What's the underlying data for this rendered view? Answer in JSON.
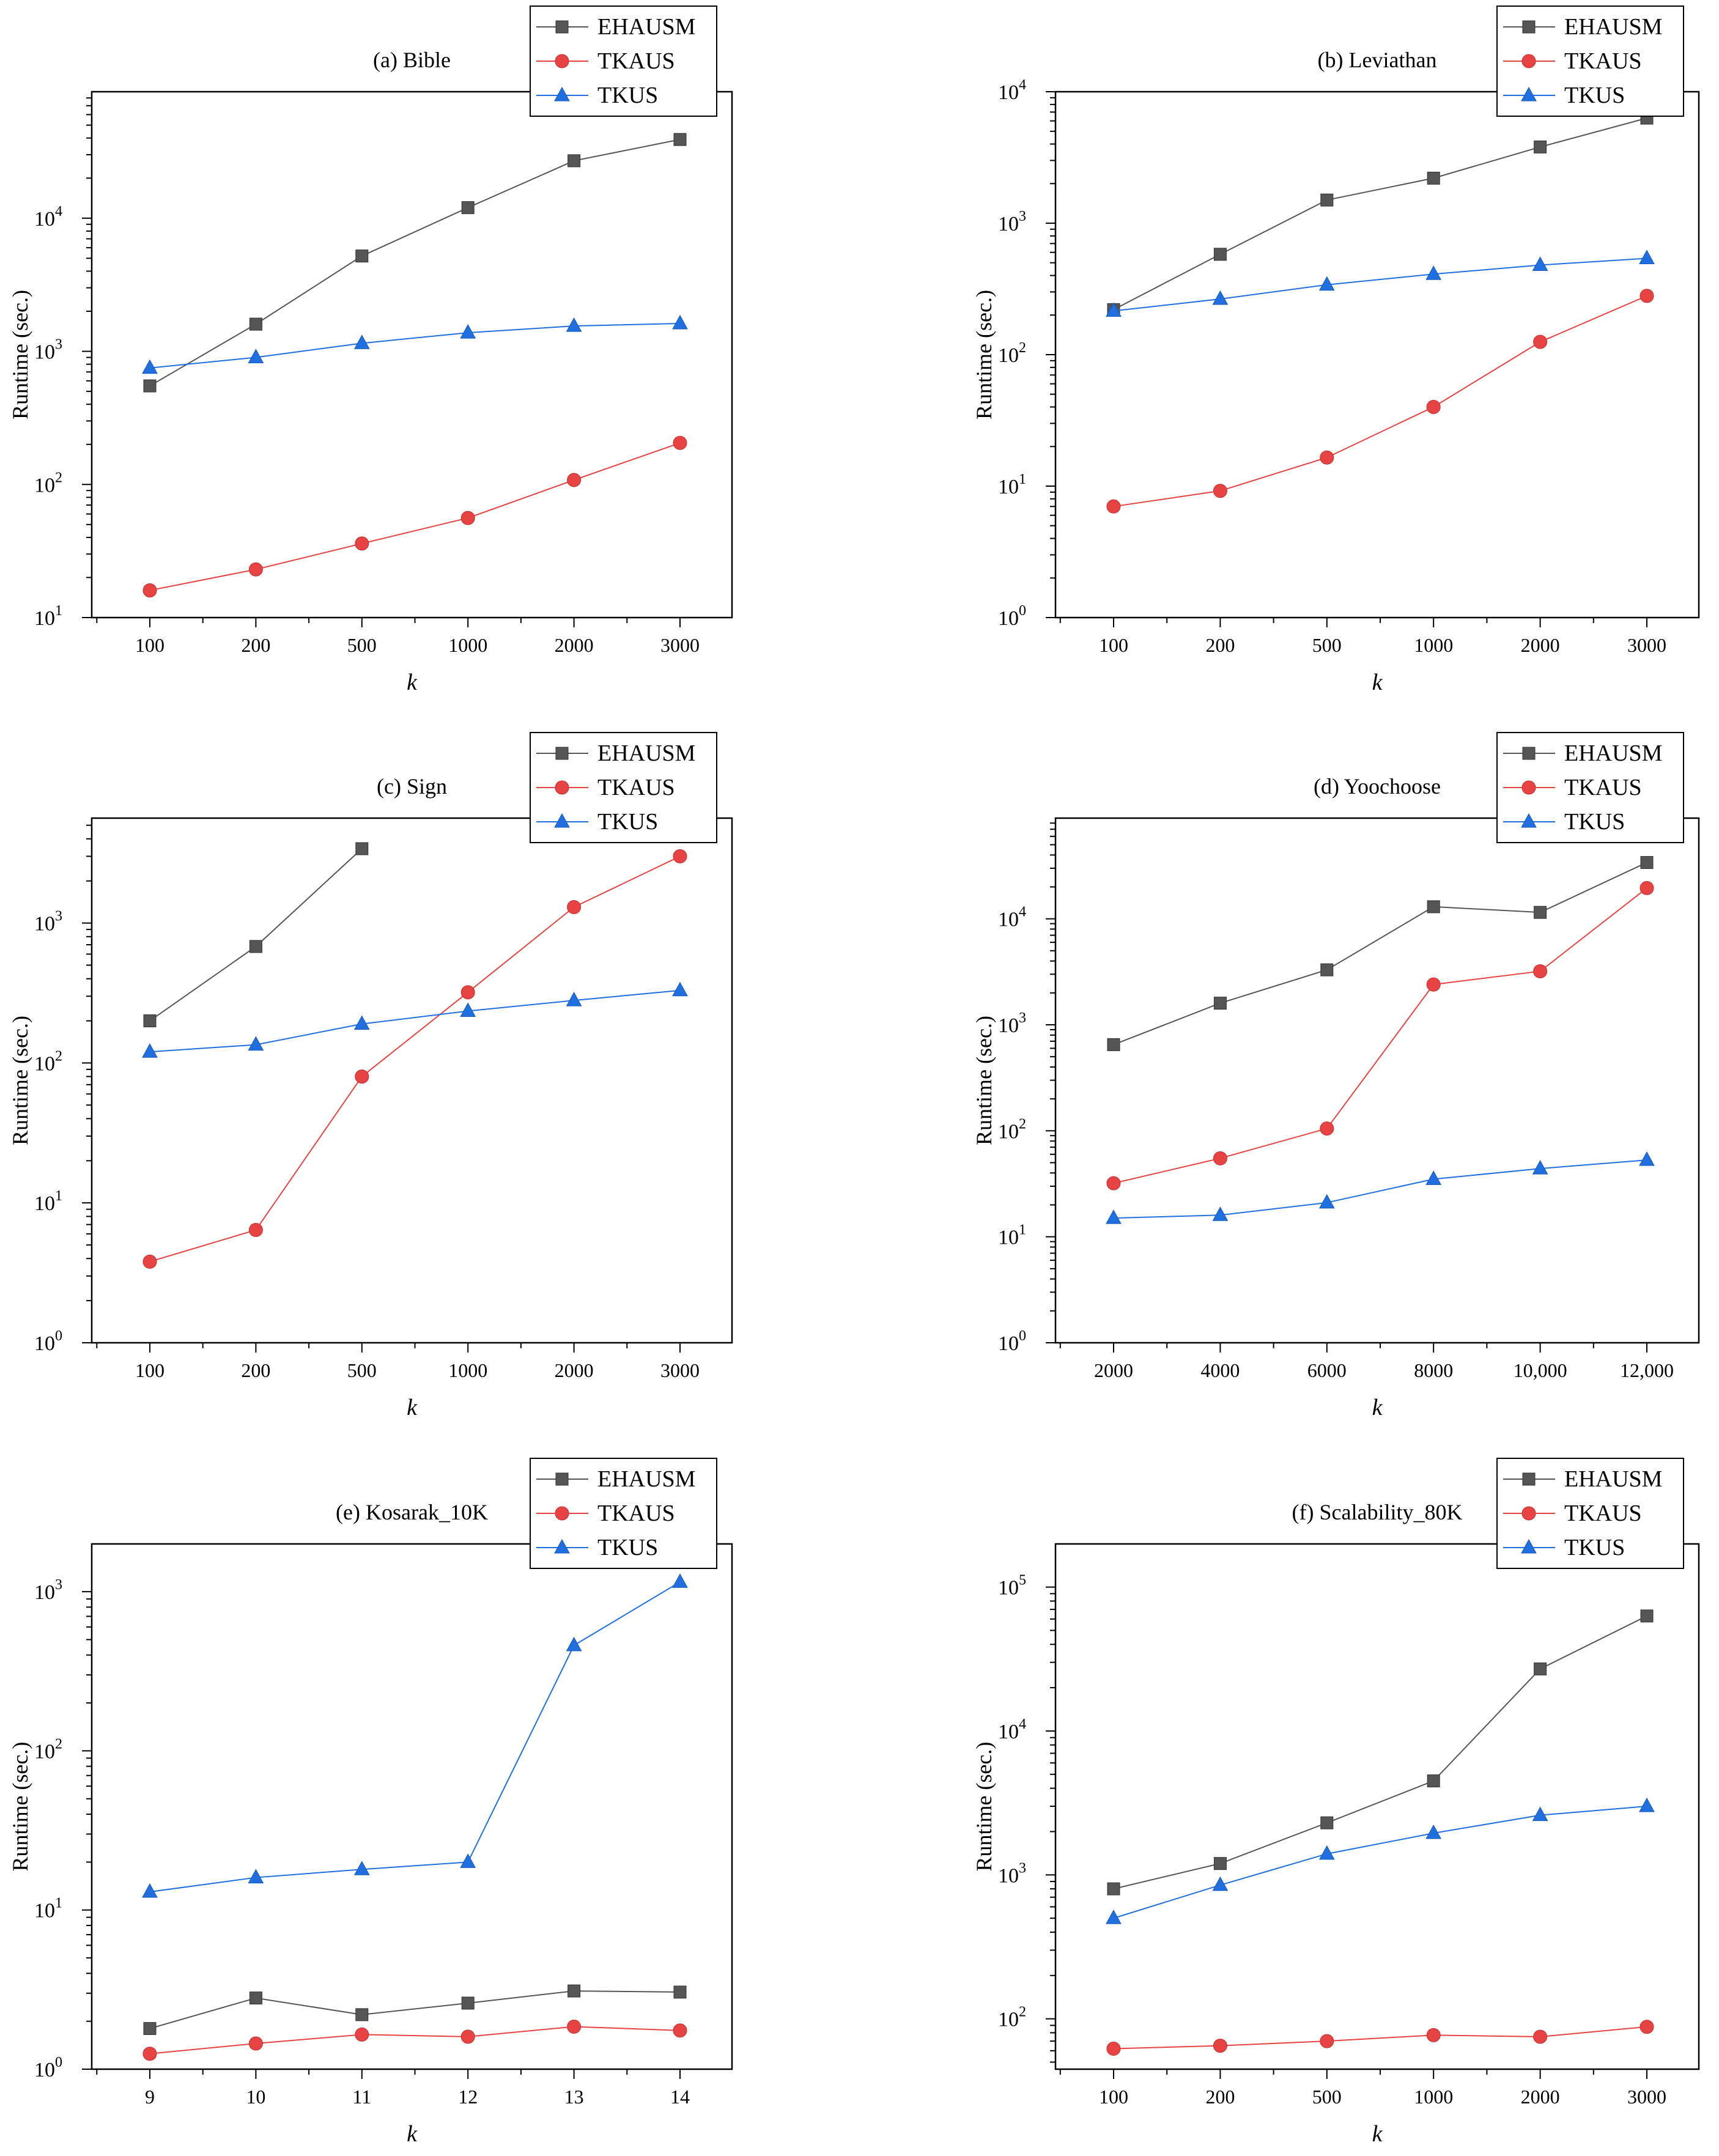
{
  "legend": {
    "entries": [
      {
        "name": "EHAUSM",
        "color": "#555555",
        "marker": "square"
      },
      {
        "name": "TKAUS",
        "color": "#e84343",
        "marker": "circle"
      },
      {
        "name": "TKUS",
        "color": "#1f6fe0",
        "marker": "triangle"
      }
    ],
    "placement": "top-right"
  },
  "chart_data": [
    {
      "type": "line",
      "title": "(a) Bible",
      "xlabel": "k",
      "ylabel": "Runtime (sec.)",
      "yscale": "log",
      "ylim_exp": [
        1,
        4.95
      ],
      "categories": [
        "100",
        "200",
        "500",
        "1000",
        "2000",
        "3000"
      ],
      "series": [
        {
          "name": "EHAUSM",
          "values": [
            550,
            1600,
            5200,
            12000,
            27000,
            39000
          ]
        },
        {
          "name": "TKAUS",
          "values": [
            16,
            23,
            36,
            56,
            108,
            205
          ]
        },
        {
          "name": "TKUS",
          "values": [
            750,
            900,
            1150,
            1380,
            1550,
            1620
          ]
        }
      ],
      "yticks": [
        {
          "base": "10",
          "exp": "1",
          "v": 1
        },
        {
          "base": "10",
          "exp": "2",
          "v": 2
        },
        {
          "base": "10",
          "exp": "3",
          "v": 3
        },
        {
          "base": "10",
          "exp": "4",
          "v": 4
        }
      ]
    },
    {
      "type": "line",
      "title": "(b) Leviathan",
      "xlabel": "k",
      "ylabel": "Runtime (sec.)",
      "yscale": "log",
      "ylim_exp": [
        0,
        4
      ],
      "categories": [
        "100",
        "200",
        "500",
        "1000",
        "2000",
        "3000"
      ],
      "series": [
        {
          "name": "EHAUSM",
          "values": [
            220,
            580,
            1500,
            2200,
            3800,
            6300
          ]
        },
        {
          "name": "TKAUS",
          "values": [
            7,
            9.2,
            16.5,
            40,
            125,
            280
          ]
        },
        {
          "name": "TKUS",
          "values": [
            215,
            265,
            340,
            410,
            480,
            540
          ]
        }
      ],
      "yticks": [
        {
          "base": "10",
          "exp": "0",
          "v": 0
        },
        {
          "base": "10",
          "exp": "1",
          "v": 1
        },
        {
          "base": "10",
          "exp": "2",
          "v": 2
        },
        {
          "base": "10",
          "exp": "3",
          "v": 3
        },
        {
          "base": "10",
          "exp": "4",
          "v": 4
        }
      ]
    },
    {
      "type": "line",
      "title": "(c) Sign",
      "xlabel": "k",
      "ylabel": "Runtime (sec.)",
      "yscale": "log",
      "ylim_exp": [
        0,
        3.75
      ],
      "categories": [
        "100",
        "200",
        "500",
        "1000",
        "2000",
        "3000"
      ],
      "series": [
        {
          "name": "EHAUSM",
          "values": [
            200,
            680,
            3400,
            null,
            null,
            null
          ]
        },
        {
          "name": "TKAUS",
          "values": [
            3.8,
            6.4,
            80,
            320,
            1300,
            3000
          ]
        },
        {
          "name": "TKUS",
          "values": [
            120,
            135,
            190,
            235,
            280,
            330
          ]
        }
      ],
      "yticks": [
        {
          "base": "10",
          "exp": "0",
          "v": 0
        },
        {
          "base": "10",
          "exp": "1",
          "v": 1
        },
        {
          "base": "10",
          "exp": "2",
          "v": 2
        },
        {
          "base": "10",
          "exp": "3",
          "v": 3
        }
      ]
    },
    {
      "type": "line",
      "title": "(d) Yoochoose",
      "xlabel": "k",
      "ylabel": "Runtime (sec.)",
      "yscale": "log",
      "ylim_exp": [
        0,
        4.95
      ],
      "categories": [
        "2000",
        "4000",
        "6000",
        "8000",
        "10,000",
        "12,000"
      ],
      "series": [
        {
          "name": "EHAUSM",
          "values": [
            650,
            1600,
            3300,
            13000,
            11500,
            34000
          ]
        },
        {
          "name": "TKAUS",
          "values": [
            32,
            55,
            105,
            2400,
            3200,
            19500
          ]
        },
        {
          "name": "TKUS",
          "values": [
            15,
            16,
            21,
            35,
            44,
            53
          ]
        }
      ],
      "yticks": [
        {
          "base": "10",
          "exp": "0",
          "v": 0
        },
        {
          "base": "10",
          "exp": "1",
          "v": 1
        },
        {
          "base": "10",
          "exp": "2",
          "v": 2
        },
        {
          "base": "10",
          "exp": "3",
          "v": 3
        },
        {
          "base": "10",
          "exp": "4",
          "v": 4
        }
      ]
    },
    {
      "type": "line",
      "title": "(e) Kosarak_10K",
      "xlabel": "k",
      "ylabel": "Runtime (sec.)",
      "yscale": "log",
      "ylim_exp": [
        0,
        3.3
      ],
      "categories": [
        "9",
        "10",
        "11",
        "12",
        "13",
        "14"
      ],
      "series": [
        {
          "name": "EHAUSM",
          "values": [
            1.8,
            2.8,
            2.2,
            2.6,
            3.1,
            3.05
          ]
        },
        {
          "name": "TKAUS",
          "values": [
            1.25,
            1.45,
            1.65,
            1.6,
            1.85,
            1.75
          ]
        },
        {
          "name": "TKUS",
          "values": [
            13,
            16,
            18,
            20,
            460,
            1150
          ]
        }
      ],
      "yticks": [
        {
          "base": "10",
          "exp": "0",
          "v": 0
        },
        {
          "base": "10",
          "exp": "1",
          "v": 1
        },
        {
          "base": "10",
          "exp": "2",
          "v": 2
        },
        {
          "base": "10",
          "exp": "3",
          "v": 3
        }
      ]
    },
    {
      "type": "line",
      "title": "(f) Scalability_80K",
      "xlabel": "k",
      "ylabel": "Runtime (sec.)",
      "yscale": "log",
      "ylim_exp": [
        1.65,
        5.3
      ],
      "categories": [
        "100",
        "200",
        "500",
        "1000",
        "2000",
        "3000"
      ],
      "series": [
        {
          "name": "EHAUSM",
          "values": [
            800,
            1200,
            2300,
            4500,
            27000,
            63000
          ]
        },
        {
          "name": "TKAUS",
          "values": [
            62,
            65,
            70,
            77,
            75,
            88
          ]
        },
        {
          "name": "TKUS",
          "values": [
            500,
            850,
            1400,
            1950,
            2600,
            3000
          ]
        }
      ],
      "yticks": [
        {
          "base": "10",
          "exp": "2",
          "v": 2
        },
        {
          "base": "10",
          "exp": "3",
          "v": 3
        },
        {
          "base": "10",
          "exp": "4",
          "v": 4
        },
        {
          "base": "10",
          "exp": "5",
          "v": 5
        }
      ]
    }
  ]
}
